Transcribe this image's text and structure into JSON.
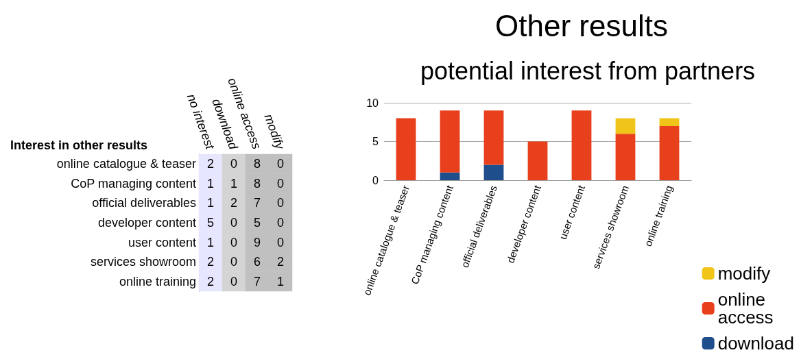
{
  "chart_data": [
    {
      "type": "heatmap",
      "title": "Interest in other results",
      "categories": [
        "no interest",
        "download",
        "online access",
        "modify"
      ],
      "y_categories": [
        "online catalogue & teaser",
        "CoP managing content",
        "official deliverables",
        "developer content",
        "user content",
        "services showroom",
        "online training"
      ],
      "cells": [
        [
          2,
          0,
          8,
          0
        ],
        [
          1,
          1,
          8,
          0
        ],
        [
          1,
          2,
          7,
          0
        ],
        [
          5,
          0,
          5,
          0
        ],
        [
          1,
          0,
          9,
          0
        ],
        [
          2,
          0,
          6,
          2
        ],
        [
          2,
          0,
          7,
          1
        ]
      ],
      "data_labels": true
    },
    {
      "type": "bar",
      "title": "Other results",
      "subtitle": "potential interest from partners",
      "stacked": true,
      "categories": [
        "online catalogue & teaser",
        "CoP managing content",
        "official deliverables",
        "developer content",
        "user content",
        "services showroom",
        "online training"
      ],
      "series": [
        {
          "name": "download",
          "color": "#1f4e8c",
          "values": [
            0,
            1,
            2,
            0,
            0,
            0,
            0
          ]
        },
        {
          "name": "online access",
          "color": "#e8401c",
          "values": [
            8,
            8,
            7,
            5,
            9,
            6,
            7
          ]
        },
        {
          "name": "modify",
          "color": "#f0c419",
          "values": [
            0,
            0,
            0,
            0,
            0,
            2,
            1
          ]
        }
      ],
      "ylim": [
        0,
        10
      ],
      "yticks": [
        0,
        5,
        10
      ],
      "grid": "y",
      "legend": "bottom right"
    }
  ]
}
